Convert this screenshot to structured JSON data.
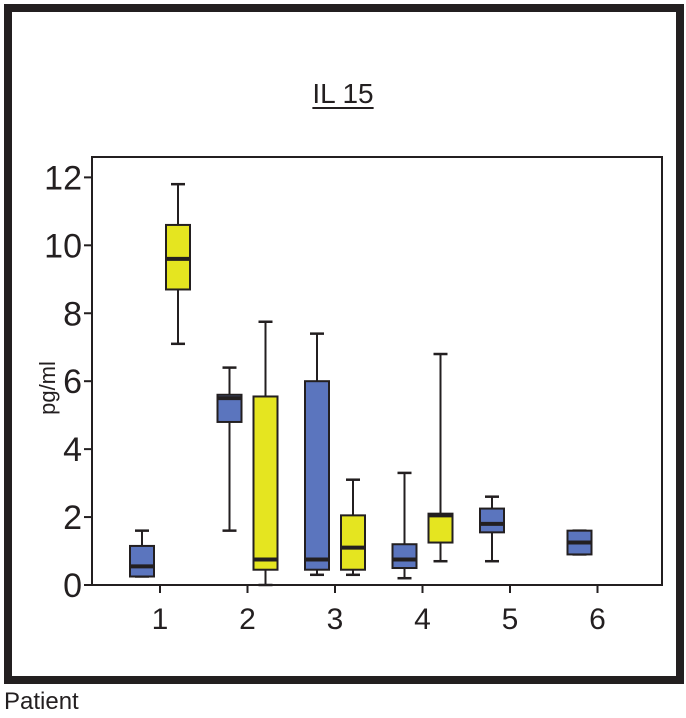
{
  "chart_data": {
    "type": "boxplot",
    "title": "IL 15",
    "xlabel": "Patient",
    "ylabel": "pg/ml",
    "categories": [
      "1",
      "2",
      "3",
      "4",
      "5",
      "6"
    ],
    "yticks": [
      0,
      2,
      4,
      6,
      8,
      10,
      12
    ],
    "ylim": [
      0,
      12.6
    ],
    "grid": false,
    "series": [
      {
        "color": "#5b75be",
        "boxes": [
          {
            "category": "1",
            "whisker_low": 0.25,
            "q1": 0.25,
            "median": 0.55,
            "q3": 1.15,
            "whisker_high": 1.6
          },
          {
            "category": "2",
            "whisker_low": 1.6,
            "q1": 4.8,
            "median": 5.5,
            "q3": 5.6,
            "whisker_high": 6.4
          },
          {
            "category": "3",
            "whisker_low": 0.3,
            "q1": 0.45,
            "median": 0.75,
            "q3": 6.0,
            "whisker_high": 7.4
          },
          {
            "category": "4",
            "whisker_low": 0.2,
            "q1": 0.5,
            "median": 0.75,
            "q3": 1.2,
            "whisker_high": 3.3
          },
          {
            "category": "5",
            "whisker_low": 0.7,
            "q1": 1.55,
            "median": 1.8,
            "q3": 2.25,
            "whisker_high": 2.6
          },
          {
            "category": "6",
            "whisker_low": 0.9,
            "q1": 0.9,
            "median": 1.25,
            "q3": 1.6,
            "whisker_high": 1.6
          }
        ]
      },
      {
        "color": "#e5e520",
        "boxes": [
          {
            "category": "1",
            "whisker_low": 7.1,
            "q1": 8.7,
            "median": 9.6,
            "q3": 10.6,
            "whisker_high": 11.8
          },
          {
            "category": "2",
            "whisker_low": 0.0,
            "q1": 0.45,
            "median": 0.75,
            "q3": 5.55,
            "whisker_high": 7.75
          },
          {
            "category": "3",
            "whisker_low": 0.3,
            "q1": 0.45,
            "median": 1.1,
            "q3": 2.05,
            "whisker_high": 3.1
          },
          {
            "category": "4",
            "whisker_low": 0.7,
            "q1": 1.25,
            "median": 2.05,
            "q3": 2.1,
            "whisker_high": 6.8
          }
        ]
      }
    ]
  }
}
